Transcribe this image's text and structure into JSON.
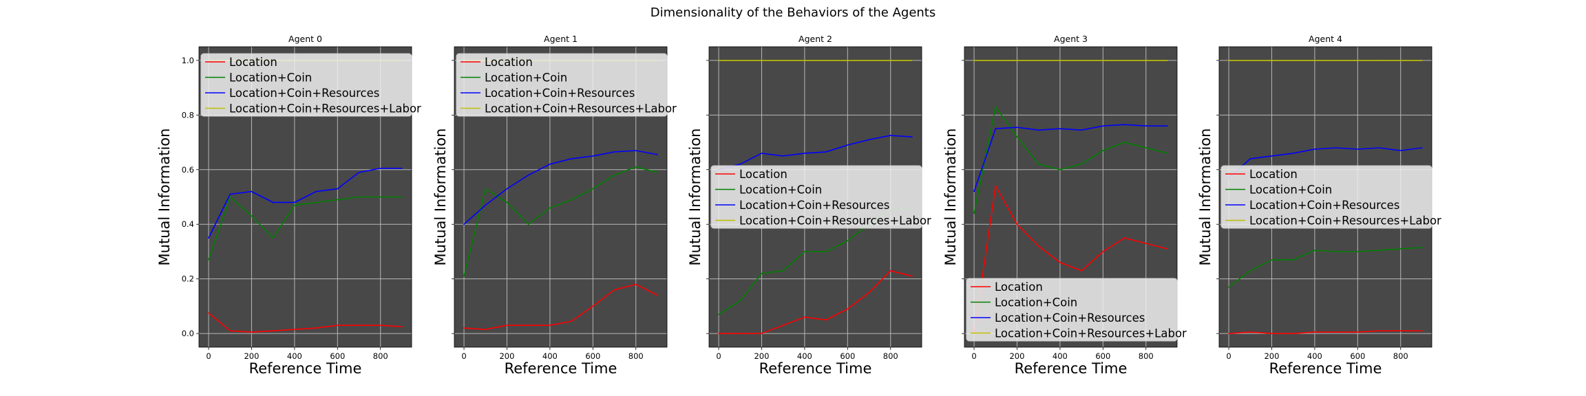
{
  "suptitle": "Dimensionality of the Behaviors of the Agents",
  "colors": {
    "background": "#484848",
    "grid": "#b8b8b8",
    "Location": "#ff0000",
    "Location+Coin": "#008000",
    "Location+Coin+Resources": "#0000ff",
    "Location+Coin+Resources+Labor": "#bfbf00"
  },
  "chart_data": [
    {
      "type": "line",
      "title": "Agent 0",
      "xlabel": "Reference Time",
      "ylabel": "Mutual Information",
      "xlim": [
        -45,
        945
      ],
      "ylim": [
        -0.05,
        1.05
      ],
      "xticks": [
        0,
        200,
        400,
        600,
        800
      ],
      "yticks": [
        0.0,
        0.2,
        0.4,
        0.6,
        0.8,
        1.0
      ],
      "ytick_labels": [
        "0.0",
        "0.2",
        "0.4",
        "0.6",
        "0.8",
        "1.0"
      ],
      "show_yticklabels": true,
      "grid": true,
      "legend": "upper left",
      "x": [
        0,
        100,
        200,
        300,
        400,
        500,
        600,
        700,
        800,
        900
      ],
      "series": [
        {
          "name": "Location",
          "color": "#ff0000",
          "values": [
            0.075,
            0.01,
            0.005,
            0.01,
            0.015,
            0.02,
            0.03,
            0.03,
            0.03,
            0.025
          ]
        },
        {
          "name": "Location+Coin",
          "color": "#008000",
          "values": [
            0.27,
            0.5,
            0.43,
            0.35,
            0.47,
            0.48,
            0.49,
            0.5,
            0.5,
            0.5
          ]
        },
        {
          "name": "Location+Coin+Resources",
          "color": "#0000ff",
          "values": [
            0.35,
            0.51,
            0.52,
            0.48,
            0.48,
            0.52,
            0.53,
            0.59,
            0.605,
            0.605
          ]
        },
        {
          "name": "Location+Coin+Resources+Labor",
          "color": "#bfbf00",
          "values": [
            1.0,
            1.0,
            1.0,
            1.0,
            1.0,
            1.0,
            1.0,
            1.0,
            1.0,
            1.0
          ]
        }
      ]
    },
    {
      "type": "line",
      "title": "Agent 1",
      "xlabel": "Reference Time",
      "ylabel": "Mutual Information",
      "xlim": [
        -45,
        945
      ],
      "ylim": [
        -0.05,
        1.05
      ],
      "xticks": [
        0,
        200,
        400,
        600,
        800
      ],
      "yticks": [
        0.0,
        0.2,
        0.4,
        0.6,
        0.8,
        1.0
      ],
      "show_yticklabels": false,
      "grid": true,
      "legend": "upper left",
      "x": [
        0,
        100,
        200,
        300,
        400,
        500,
        600,
        700,
        800,
        900
      ],
      "series": [
        {
          "name": "Location",
          "color": "#ff0000",
          "values": [
            0.02,
            0.015,
            0.03,
            0.03,
            0.03,
            0.045,
            0.1,
            0.16,
            0.18,
            0.14
          ]
        },
        {
          "name": "Location+Coin",
          "color": "#008000",
          "values": [
            0.21,
            0.53,
            0.48,
            0.4,
            0.46,
            0.49,
            0.53,
            0.58,
            0.61,
            0.59
          ]
        },
        {
          "name": "Location+Coin+Resources",
          "color": "#0000ff",
          "values": [
            0.4,
            0.47,
            0.53,
            0.58,
            0.62,
            0.64,
            0.65,
            0.665,
            0.67,
            0.655
          ]
        },
        {
          "name": "Location+Coin+Resources+Labor",
          "color": "#bfbf00",
          "values": [
            1.0,
            1.0,
            1.0,
            1.0,
            1.0,
            1.0,
            1.0,
            1.0,
            1.0,
            1.0
          ]
        }
      ]
    },
    {
      "type": "line",
      "title": "Agent 2",
      "xlabel": "Reference Time",
      "ylabel": "Mutual Information",
      "xlim": [
        -45,
        945
      ],
      "ylim": [
        -0.05,
        1.05
      ],
      "xticks": [
        0,
        200,
        400,
        600,
        800
      ],
      "yticks": [
        0.0,
        0.2,
        0.4,
        0.6,
        0.8,
        1.0
      ],
      "show_yticklabels": false,
      "grid": true,
      "legend": "center left",
      "x": [
        0,
        100,
        200,
        300,
        400,
        500,
        600,
        700,
        800,
        900
      ],
      "series": [
        {
          "name": "Location",
          "color": "#ff0000",
          "values": [
            0.0,
            0.0,
            0.0,
            0.03,
            0.06,
            0.05,
            0.09,
            0.15,
            0.23,
            0.21
          ]
        },
        {
          "name": "Location+Coin",
          "color": "#008000",
          "values": [
            0.07,
            0.12,
            0.22,
            0.23,
            0.3,
            0.3,
            0.34,
            0.4,
            0.45,
            0.46
          ]
        },
        {
          "name": "Location+Coin+Resources",
          "color": "#0000ff",
          "values": [
            0.6,
            0.62,
            0.66,
            0.65,
            0.66,
            0.665,
            0.69,
            0.71,
            0.725,
            0.72
          ]
        },
        {
          "name": "Location+Coin+Resources+Labor",
          "color": "#bfbf00",
          "values": [
            1.0,
            1.0,
            1.0,
            1.0,
            1.0,
            1.0,
            1.0,
            1.0,
            1.0,
            1.0
          ]
        }
      ]
    },
    {
      "type": "line",
      "title": "Agent 3",
      "xlabel": "Reference Time",
      "ylabel": "Mutual Information",
      "xlim": [
        -45,
        945
      ],
      "ylim": [
        -0.05,
        1.05
      ],
      "xticks": [
        0,
        200,
        400,
        600,
        800
      ],
      "yticks": [
        0.0,
        0.2,
        0.4,
        0.6,
        0.8,
        1.0
      ],
      "show_yticklabels": false,
      "grid": true,
      "legend": "lower left",
      "x": [
        0,
        100,
        200,
        300,
        400,
        500,
        600,
        700,
        800,
        900
      ],
      "series": [
        {
          "name": "Location",
          "color": "#ff0000",
          "values": [
            0.0,
            0.54,
            0.4,
            0.32,
            0.26,
            0.23,
            0.3,
            0.35,
            0.33,
            0.31
          ]
        },
        {
          "name": "Location+Coin",
          "color": "#008000",
          "values": [
            0.44,
            0.83,
            0.72,
            0.62,
            0.6,
            0.62,
            0.67,
            0.7,
            0.68,
            0.66
          ]
        },
        {
          "name": "Location+Coin+Resources",
          "color": "#0000ff",
          "values": [
            0.52,
            0.75,
            0.755,
            0.745,
            0.75,
            0.745,
            0.76,
            0.765,
            0.76,
            0.76
          ]
        },
        {
          "name": "Location+Coin+Resources+Labor",
          "color": "#bfbf00",
          "values": [
            1.0,
            1.0,
            1.0,
            1.0,
            1.0,
            1.0,
            1.0,
            1.0,
            1.0,
            1.0
          ]
        }
      ]
    },
    {
      "type": "line",
      "title": "Agent 4",
      "xlabel": "Reference Time",
      "ylabel": "Mutual Information",
      "xlim": [
        -45,
        945
      ],
      "ylim": [
        -0.05,
        1.05
      ],
      "xticks": [
        0,
        200,
        400,
        600,
        800
      ],
      "yticks": [
        0.0,
        0.2,
        0.4,
        0.6,
        0.8,
        1.0
      ],
      "show_yticklabels": false,
      "grid": true,
      "legend": "center left",
      "x": [
        0,
        100,
        200,
        300,
        400,
        500,
        600,
        700,
        800,
        900
      ],
      "series": [
        {
          "name": "Location",
          "color": "#ff0000",
          "values": [
            0.0,
            0.005,
            0.0,
            0.0,
            0.005,
            0.005,
            0.005,
            0.01,
            0.01,
            0.01
          ]
        },
        {
          "name": "Location+Coin",
          "color": "#008000",
          "values": [
            0.17,
            0.23,
            0.27,
            0.27,
            0.305,
            0.3,
            0.3,
            0.305,
            0.31,
            0.315
          ]
        },
        {
          "name": "Location+Coin+Resources",
          "color": "#0000ff",
          "values": [
            0.57,
            0.64,
            0.65,
            0.66,
            0.675,
            0.68,
            0.675,
            0.68,
            0.67,
            0.68
          ]
        },
        {
          "name": "Location+Coin+Resources+Labor",
          "color": "#bfbf00",
          "values": [
            1.0,
            1.0,
            1.0,
            1.0,
            1.0,
            1.0,
            1.0,
            1.0,
            1.0,
            1.0
          ]
        }
      ]
    }
  ]
}
